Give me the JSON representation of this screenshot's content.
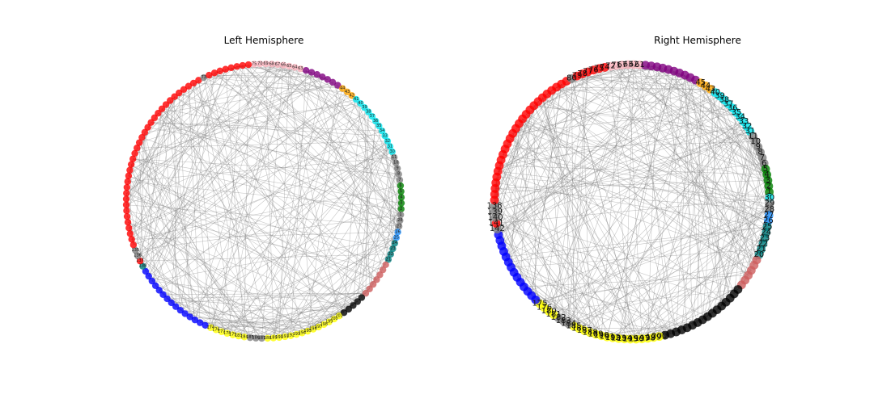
{
  "panels": [
    {
      "title": "Left Hemisphere",
      "node_label_size": "small",
      "groups": [
        {
          "color": "#ffb6c1",
          "count": 9,
          "labels": [
            "75",
            "70",
            "69",
            "68",
            "67",
            "66",
            "65",
            "64",
            "63"
          ]
        },
        {
          "color": "#800080",
          "count": 7,
          "labels": []
        },
        {
          "color": "#ffa500",
          "count": 3,
          "labels": [
            "44",
            "43",
            "42"
          ]
        },
        {
          "color": "#00e5ee",
          "count": 12,
          "labels": [
            "41",
            "40",
            "39",
            "38",
            "37",
            "36",
            "35",
            "34",
            "33",
            "32",
            "31",
            "30"
          ]
        },
        {
          "color": "#808080",
          "count": 5,
          "labels": [
            "11",
            "10",
            "9",
            "8",
            "7"
          ]
        },
        {
          "color": "#008000",
          "count": 5,
          "labels": [
            "6",
            "5",
            "4",
            "3",
            "2"
          ]
        },
        {
          "color": "#808080",
          "count": 3,
          "labels": [
            "1",
            "28",
            "27"
          ]
        },
        {
          "color": "#1e90ff",
          "count": 2,
          "labels": [
            "26",
            "25"
          ]
        },
        {
          "color": "#008080",
          "count": 4,
          "labels": [
            "24",
            "23",
            "22",
            "21"
          ]
        },
        {
          "color": "#cd5c5c",
          "count": 7,
          "labels": []
        },
        {
          "color": "#000000",
          "count": 5,
          "labels": []
        },
        {
          "color": "#ffff00",
          "count": 14,
          "labels": [
            "201",
            "200",
            "199",
            "198",
            "197",
            "196",
            "195",
            "194",
            "193",
            "192",
            "191",
            "190",
            "189",
            "188"
          ]
        },
        {
          "color": "#808080",
          "count": 3,
          "labels": [
            "187",
            "186",
            "185"
          ]
        },
        {
          "color": "#ffff00",
          "count": 7,
          "labels": [
            "184",
            "183",
            "179",
            "178",
            "177",
            "176",
            "174"
          ]
        },
        {
          "color": "#0000ff",
          "count": 15,
          "labels": []
        },
        {
          "color": "#008080",
          "count": 1,
          "labels": [
            "138"
          ]
        },
        {
          "color": "#ff0000",
          "count": 1,
          "labels": [
            "137"
          ]
        },
        {
          "color": "#808080",
          "count": 2,
          "labels": [
            "136",
            "135"
          ]
        },
        {
          "color": "#ff0000",
          "count": 34,
          "labels": []
        },
        {
          "color": "#808080",
          "count": 1,
          "labels": [
            "73"
          ]
        },
        {
          "color": "#ff0000",
          "count": 8,
          "labels": []
        }
      ],
      "edges": {
        "count": 330,
        "seed": 11
      }
    },
    {
      "title": "Right Hemisphere",
      "node_label_size": "large",
      "groups": [
        {
          "color": "#ffb6c1",
          "count": 6,
          "labels": [
            "72",
            "71",
            "67",
            "63",
            "62",
            "61"
          ]
        },
        {
          "color": "#800080",
          "count": 10,
          "labels": []
        },
        {
          "color": "#ffa500",
          "count": 3,
          "labels": [
            "45",
            "44",
            "43"
          ]
        },
        {
          "color": "#00e5ee",
          "count": 10,
          "labels": [
            "40",
            "39",
            "38",
            "37",
            "36",
            "35",
            "34",
            "33",
            "32",
            "31"
          ]
        },
        {
          "color": "#808080",
          "count": 6,
          "labels": [
            "11",
            "10",
            "9",
            "8",
            "7",
            "6"
          ]
        },
        {
          "color": "#008000",
          "count": 5,
          "labels": [
            "5",
            "4",
            "3",
            "2",
            "1"
          ]
        },
        {
          "color": "#00e5ee",
          "count": 1,
          "labels": [
            "30"
          ]
        },
        {
          "color": "#808080",
          "count": 2,
          "labels": [
            "29",
            "28"
          ]
        },
        {
          "color": "#1e90ff",
          "count": 2,
          "labels": [
            "27",
            "26"
          ]
        },
        {
          "color": "#008080",
          "count": 6,
          "labels": [
            "25",
            "24",
            "23",
            "22",
            "21",
            "20"
          ]
        },
        {
          "color": "#cd5c5c",
          "count": 6,
          "labels": []
        },
        {
          "color": "#000000",
          "count": 16,
          "labels": []
        },
        {
          "color": "#ffff00",
          "count": 16,
          "labels": [
            "200",
            "199",
            "198",
            "197",
            "196",
            "195",
            "194",
            "193",
            "192",
            "191",
            "190",
            "189",
            "188",
            "187",
            "186",
            "185"
          ]
        },
        {
          "color": "#808080",
          "count": 3,
          "labels": [
            "184",
            "183",
            "182"
          ]
        },
        {
          "color": "#ffff00",
          "count": 4,
          "labels": [
            "181",
            "180",
            "176",
            "175"
          ]
        },
        {
          "color": "#0000ff",
          "count": 14,
          "labels": []
        },
        {
          "color": "#808080",
          "count": 1,
          "labels": [
            "142"
          ]
        },
        {
          "color": "#ff0000",
          "count": 1,
          "labels": [
            "141"
          ]
        },
        {
          "color": "#808080",
          "count": 3,
          "labels": [
            "140",
            "139",
            "138"
          ]
        },
        {
          "color": "#ff0000",
          "count": 26,
          "labels": []
        },
        {
          "color": "#808080",
          "count": 1,
          "labels": [
            "80"
          ]
        },
        {
          "color": "#ff0000",
          "count": 6,
          "labels": [
            "79",
            "78",
            "77",
            "76",
            "75",
            "74"
          ]
        }
      ],
      "edges": {
        "count": 380,
        "seed": 29
      }
    }
  ]
}
